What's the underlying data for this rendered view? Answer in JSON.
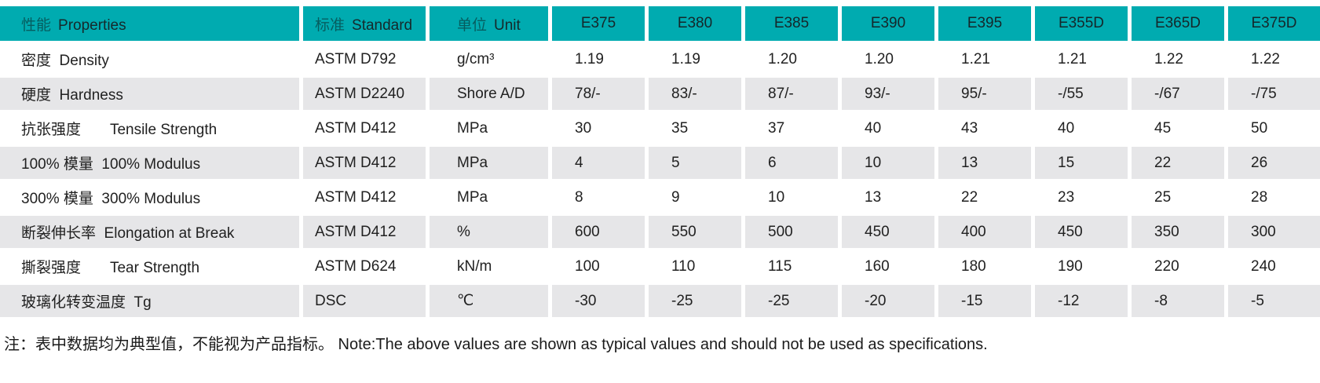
{
  "accent_color": "#00ABB0",
  "alt_row_color": "#E6E6E8",
  "table": {
    "header": {
      "properties": {
        "zh": "性能",
        "en": "Properties"
      },
      "standard": {
        "zh": "标准",
        "en": "Standard"
      },
      "unit": {
        "zh": "单位",
        "en": "Unit"
      },
      "grades": [
        "E375",
        "E380",
        "E385",
        "E390",
        "E395",
        "E355D",
        "E365D",
        "E375D"
      ]
    },
    "rows": [
      {
        "property": "密度  Density",
        "standard": "ASTM D792",
        "unit": "g/cm³",
        "values": [
          "1.19",
          "1.19",
          "1.20",
          "1.20",
          "1.21",
          "1.21",
          "1.22",
          "1.22"
        ]
      },
      {
        "property": "硬度  Hardness",
        "standard": "ASTM D2240",
        "unit": "Shore A/D",
        "values": [
          "78/-",
          "83/-",
          "87/-",
          "93/-",
          "95/-",
          "-/55",
          "-/67",
          "-/75"
        ]
      },
      {
        "property": "抗张强度       Tensile Strength",
        "standard": "ASTM D412",
        "unit": "MPa",
        "values": [
          "30",
          "35",
          "37",
          "40",
          "43",
          "40",
          "45",
          "50"
        ]
      },
      {
        "property": "100% 模量  100% Modulus",
        "standard": "ASTM D412",
        "unit": "MPa",
        "values": [
          "4",
          "5",
          "6",
          "10",
          "13",
          "15",
          "22",
          "26"
        ]
      },
      {
        "property": "300% 模量  300% Modulus",
        "standard": "ASTM D412",
        "unit": "MPa",
        "values": [
          "8",
          "9",
          "10",
          "13",
          "22",
          "23",
          "25",
          "28"
        ]
      },
      {
        "property": "断裂伸长率  Elongation at Break",
        "standard": "ASTM D412",
        "unit": "%",
        "values": [
          "600",
          "550",
          "500",
          "450",
          "400",
          "450",
          "350",
          "300"
        ]
      },
      {
        "property": "撕裂强度       Tear Strength",
        "standard": "ASTM D624",
        "unit": "kN/m",
        "values": [
          "100",
          "110",
          "115",
          "160",
          "180",
          "190",
          "220",
          "240"
        ]
      },
      {
        "property": "玻璃化转变温度  Tg",
        "standard": "DSC",
        "unit": "℃",
        "values": [
          "-30",
          "-25",
          "-25",
          "-20",
          "-15",
          "-12",
          "-8",
          "-5"
        ]
      }
    ]
  },
  "note": "注：表中数据均为典型值，不能视为产品指标。 Note:The above values are shown as typical values and should not be used as specifications.",
  "chart_data": {
    "type": "table",
    "columns": [
      "性能 Properties",
      "标准 Standard",
      "单位 Unit",
      "E375",
      "E380",
      "E385",
      "E390",
      "E395",
      "E355D",
      "E365D",
      "E375D"
    ],
    "rows": [
      [
        "密度 Density",
        "ASTM D792",
        "g/cm³",
        "1.19",
        "1.19",
        "1.20",
        "1.20",
        "1.21",
        "1.21",
        "1.22",
        "1.22"
      ],
      [
        "硬度 Hardness",
        "ASTM D2240",
        "Shore A/D",
        "78/-",
        "83/-",
        "87/-",
        "93/-",
        "95/-",
        "-/55",
        "-/67",
        "-/75"
      ],
      [
        "抗张强度 Tensile Strength",
        "ASTM D412",
        "MPa",
        "30",
        "35",
        "37",
        "40",
        "43",
        "40",
        "45",
        "50"
      ],
      [
        "100% 模量 100% Modulus",
        "ASTM D412",
        "MPa",
        "4",
        "5",
        "6",
        "10",
        "13",
        "15",
        "22",
        "26"
      ],
      [
        "300% 模量 300% Modulus",
        "ASTM D412",
        "MPa",
        "8",
        "9",
        "10",
        "13",
        "22",
        "23",
        "25",
        "28"
      ],
      [
        "断裂伸长率 Elongation at Break",
        "ASTM D412",
        "%",
        "600",
        "550",
        "500",
        "450",
        "400",
        "450",
        "350",
        "300"
      ],
      [
        "撕裂强度 Tear Strength",
        "ASTM D624",
        "kN/m",
        "100",
        "110",
        "115",
        "160",
        "180",
        "190",
        "220",
        "240"
      ],
      [
        "玻璃化转变温度 Tg",
        "DSC",
        "℃",
        "-30",
        "-25",
        "-25",
        "-20",
        "-15",
        "-12",
        "-8",
        "-5"
      ]
    ]
  }
}
